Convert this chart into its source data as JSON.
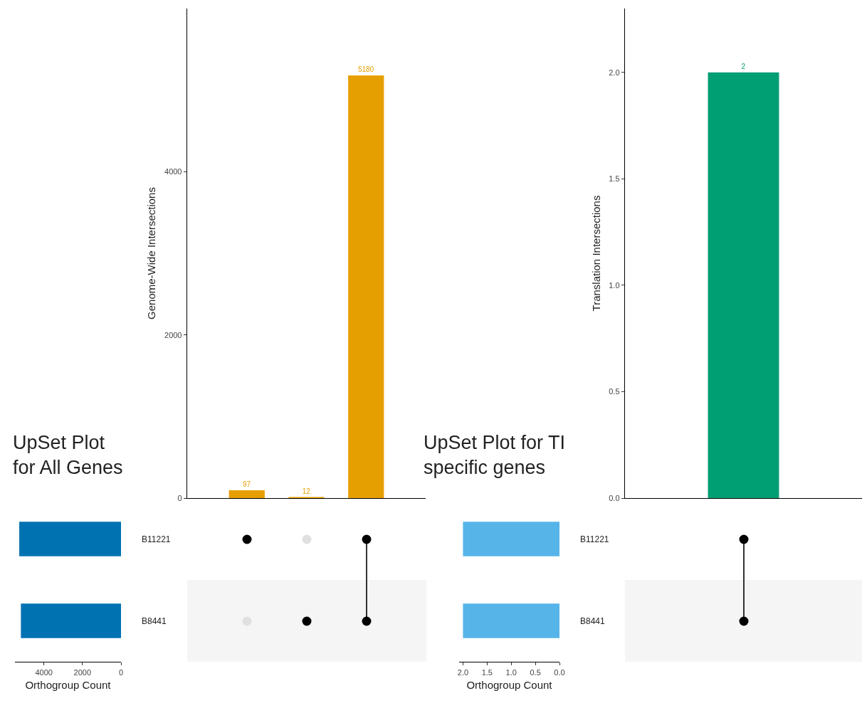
{
  "chart_data": [
    {
      "type": "bar",
      "categories": [
        null,
        null,
        null
      ],
      "values": [
        97,
        12,
        5180
      ],
      "color": "#e69f00",
      "data_labels": true,
      "ylim": [
        0,
        6000
      ],
      "yticks": [
        0,
        2000,
        4000
      ],
      "ylabel": "Genome-Wide Intersections",
      "tick_labels": "y"
    },
    {
      "type": "bar",
      "orientation": "horizontal",
      "title": "UpSet Plot\nfor All Genes",
      "categories": [
        "B11221",
        "B8441"
      ],
      "values": [
        5277,
        5192
      ],
      "color": "#0072b2",
      "xlim": [
        5500,
        0
      ],
      "xticks": [
        4000,
        2000,
        0
      ],
      "xlabel": "Orthogroup Count"
    },
    {
      "type": "bar",
      "categories": [
        null
      ],
      "values": [
        2
      ],
      "color": "#009e73",
      "data_labels": true,
      "ylim": [
        0,
        2.3
      ],
      "yticks": [
        {
          "value": 0,
          "label": "0.0"
        },
        {
          "value": 0.5,
          "label": "0.5"
        },
        {
          "value": 1,
          "label": "1.0"
        },
        {
          "value": 1.5,
          "label": "1.5"
        },
        {
          "value": 2,
          "label": "2.0"
        }
      ],
      "ylabel": "Translation Intersections",
      "tick_labels": "y"
    },
    {
      "type": "bar",
      "orientation": "horizontal",
      "title": "UpSet Plot for TI\nspecific genes",
      "categories": [
        "B11221",
        "B8441"
      ],
      "values": [
        2,
        2
      ],
      "color": "#56b4e9",
      "xlim": [
        2.08,
        0
      ],
      "xticks": [
        {
          "value": 2,
          "label": "2.0"
        },
        {
          "value": 1.5,
          "label": "1.5"
        },
        {
          "value": 1,
          "label": "1.0"
        },
        {
          "value": 0.5,
          "label": "0.5"
        },
        {
          "value": 0,
          "label": "0.0"
        }
      ],
      "xlabel": "Orthogroup Count"
    }
  ]
}
